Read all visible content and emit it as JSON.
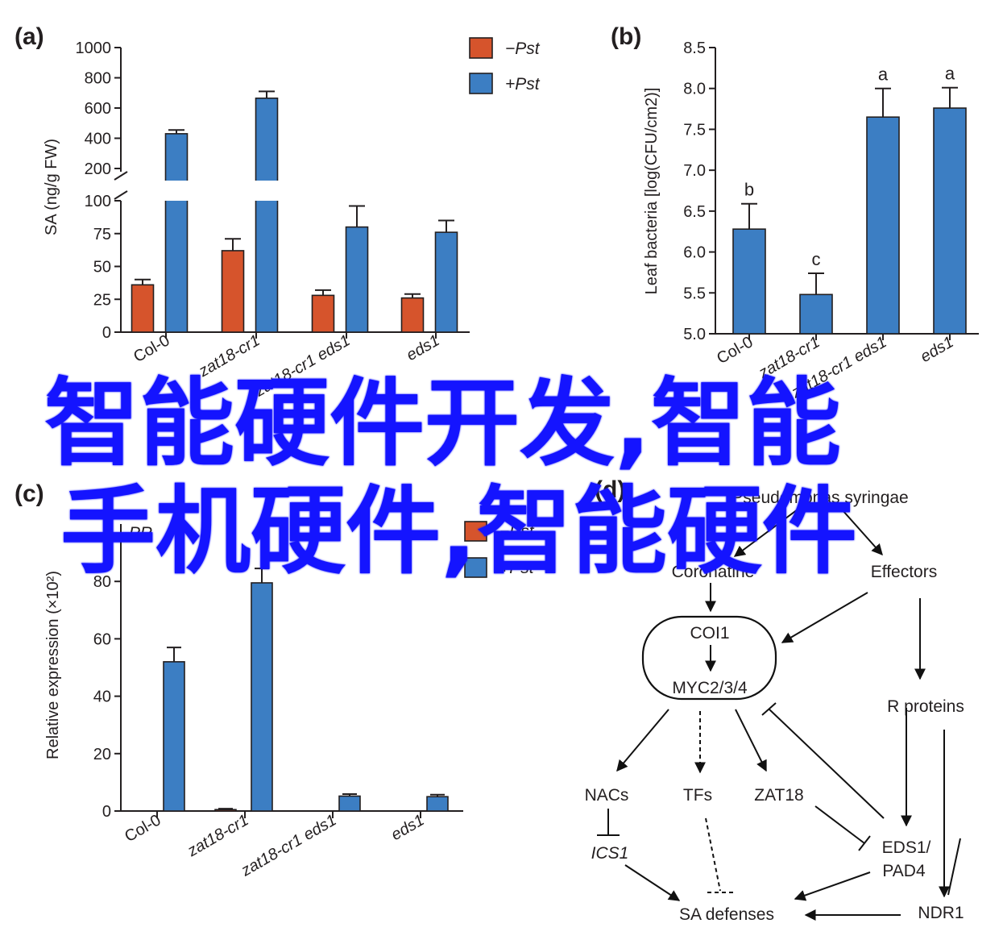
{
  "colors": {
    "minus": "#d6542c",
    "plus": "#3c7ec3",
    "axis": "#231f20",
    "overlay": "#1414ff"
  },
  "overlay": {
    "line1": "智能硬件开发,智能",
    "line2": "手机硬件,智能硬件"
  },
  "legend": {
    "minus": "−Pst",
    "plus": "+Pst"
  },
  "chart_data": [
    {
      "panel": "(a)",
      "type": "bar",
      "ylabel": "SA (ng/g FW)",
      "ylim": [
        0,
        1000
      ],
      "axis_break": [
        100,
        200
      ],
      "yticks_lower": [
        "0",
        "25",
        "50",
        "75",
        "100"
      ],
      "yticks_upper": [
        "200",
        "400",
        "600",
        "800",
        "1000"
      ],
      "categories": [
        "Col-0",
        "zat18-cr1",
        "zat18-cr1 eds1",
        "eds1"
      ],
      "series": [
        {
          "name": "−Pst",
          "values": [
            36,
            62,
            28,
            26
          ],
          "errors": [
            4,
            9,
            4,
            3
          ]
        },
        {
          "name": "+Pst",
          "values": [
            430,
            665,
            80,
            76
          ],
          "errors": [
            25,
            45,
            16,
            9
          ]
        }
      ]
    },
    {
      "panel": "(b)",
      "type": "bar",
      "ylabel": "Leaf bacteria [log(CFU/cm2)]",
      "ylim": [
        5.0,
        8.5
      ],
      "yticks": [
        "5.0",
        "5.5",
        "6.0",
        "6.5",
        "7.0",
        "7.5",
        "8.0",
        "8.5"
      ],
      "categories": [
        "Col-0",
        "zat18-cr1",
        "zat18-cr1 eds1",
        "eds1"
      ],
      "values": [
        6.28,
        5.48,
        7.65,
        7.76
      ],
      "errors": [
        0.31,
        0.26,
        0.35,
        0.25
      ],
      "letters": [
        "b",
        "c",
        "a",
        "a"
      ]
    },
    {
      "panel": "(c)",
      "type": "bar",
      "title": "PR",
      "ylabel": "Relative expression (×10²)",
      "ylim": [
        0,
        100
      ],
      "yticks": [
        "0",
        "20",
        "40",
        "60",
        "80"
      ],
      "categories": [
        "Col-0",
        "zat18-cr1",
        "zat18-cr1 eds1",
        "eds1"
      ],
      "series": [
        {
          "name": "−Pst",
          "values": [
            0,
            0.5,
            0,
            0
          ],
          "errors": [
            0,
            0.3,
            0,
            0
          ]
        },
        {
          "name": "+Pst",
          "values": [
            52,
            79.5,
            5.2,
            5.0
          ],
          "errors": [
            5,
            5,
            0.7,
            0.7
          ]
        }
      ]
    }
  ],
  "diagram": {
    "panel": "(d)",
    "nodes": {
      "pst": "Pseudomonas syringae",
      "coronatine": "Coronatine",
      "effectors": "Effectors",
      "coi1": "COI1",
      "myc": "MYC2/3/4",
      "rproteins": "R proteins",
      "nacs": "NACs",
      "tfs": "TFs",
      "zat18": "ZAT18",
      "ics1": "ICS1",
      "eds1": "EDS1/",
      "pad4": "PAD4",
      "sa": "SA defenses",
      "ndr1": "NDR1"
    }
  }
}
